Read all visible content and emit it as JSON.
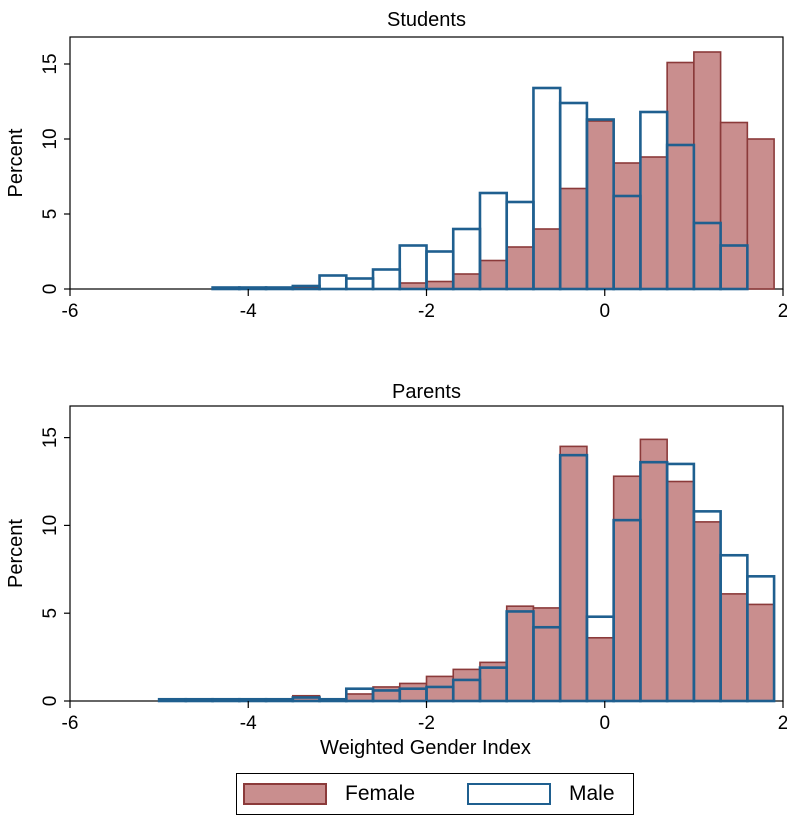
{
  "chart_data": [
    {
      "type": "histogram",
      "title": "Students",
      "xlabel": "",
      "ylabel": "Percent",
      "xlim": [
        -6,
        2
      ],
      "ylim": [
        0,
        16.8
      ],
      "xticks": [
        "-6",
        "-4",
        "-2",
        "0",
        "2"
      ],
      "yticks": [
        "0",
        "5",
        "10",
        "15"
      ],
      "bin_width": 0.3,
      "series": [
        {
          "name": "Female",
          "color": "#c98e8e",
          "edge": "#8b3a3a",
          "bins": [
            {
              "x0": -4.4,
              "value": 0.1
            },
            {
              "x0": -3.5,
              "value": 0.1
            },
            {
              "x0": -2.3,
              "value": 0.4
            },
            {
              "x0": -2.0,
              "value": 0.5
            },
            {
              "x0": -1.7,
              "value": 1.0
            },
            {
              "x0": -1.4,
              "value": 1.9
            },
            {
              "x0": -1.1,
              "value": 2.8
            },
            {
              "x0": -0.8,
              "value": 4.0
            },
            {
              "x0": -0.5,
              "value": 6.7
            },
            {
              "x0": -0.2,
              "value": 11.2
            },
            {
              "x0": 0.1,
              "value": 8.4
            },
            {
              "x0": 0.4,
              "value": 8.8
            },
            {
              "x0": 0.7,
              "value": 15.1
            },
            {
              "x0": 1.0,
              "value": 15.8
            },
            {
              "x0": 1.3,
              "value": 11.1
            },
            {
              "x0": 1.6,
              "value": 10.0
            }
          ]
        },
        {
          "name": "Male",
          "color": "#ffffff",
          "edge": "#1f5f8f",
          "bins": [
            {
              "x0": -4.4,
              "value": 0.1
            },
            {
              "x0": -4.1,
              "value": 0.1
            },
            {
              "x0": -3.8,
              "value": 0.1
            },
            {
              "x0": -3.5,
              "value": 0.2
            },
            {
              "x0": -3.2,
              "value": 0.9
            },
            {
              "x0": -2.9,
              "value": 0.7
            },
            {
              "x0": -2.6,
              "value": 1.3
            },
            {
              "x0": -2.3,
              "value": 2.9
            },
            {
              "x0": -2.0,
              "value": 2.5
            },
            {
              "x0": -1.7,
              "value": 4.0
            },
            {
              "x0": -1.4,
              "value": 6.4
            },
            {
              "x0": -1.1,
              "value": 5.8
            },
            {
              "x0": -0.8,
              "value": 13.4
            },
            {
              "x0": -0.5,
              "value": 12.4
            },
            {
              "x0": -0.2,
              "value": 11.3
            },
            {
              "x0": 0.1,
              "value": 6.2
            },
            {
              "x0": 0.4,
              "value": 11.8
            },
            {
              "x0": 0.7,
              "value": 9.6
            },
            {
              "x0": 1.0,
              "value": 4.4
            },
            {
              "x0": 1.3,
              "value": 2.9
            }
          ]
        }
      ]
    },
    {
      "type": "histogram",
      "title": "Parents",
      "xlabel": "Weighted Gender Index",
      "ylabel": "Percent",
      "xlim": [
        -6,
        2
      ],
      "ylim": [
        0,
        16.8
      ],
      "xticks": [
        "-6",
        "-4",
        "-2",
        "0",
        "2"
      ],
      "yticks": [
        "0",
        "5",
        "10",
        "15"
      ],
      "bin_width": 0.3,
      "series": [
        {
          "name": "Female",
          "color": "#c98e8e",
          "edge": "#8b3a3a",
          "bins": [
            {
              "x0": -5.0,
              "value": 0.1
            },
            {
              "x0": -4.7,
              "value": 0.1
            },
            {
              "x0": -4.4,
              "value": 0.1
            },
            {
              "x0": -4.1,
              "value": 0.1
            },
            {
              "x0": -3.8,
              "value": 0.1
            },
            {
              "x0": -3.5,
              "value": 0.3
            },
            {
              "x0": -3.2,
              "value": 0.1
            },
            {
              "x0": -2.9,
              "value": 0.4
            },
            {
              "x0": -2.6,
              "value": 0.8
            },
            {
              "x0": -2.3,
              "value": 1.0
            },
            {
              "x0": -2.0,
              "value": 1.4
            },
            {
              "x0": -1.7,
              "value": 1.8
            },
            {
              "x0": -1.4,
              "value": 2.2
            },
            {
              "x0": -1.1,
              "value": 5.4
            },
            {
              "x0": -0.8,
              "value": 5.3
            },
            {
              "x0": -0.5,
              "value": 14.5
            },
            {
              "x0": -0.2,
              "value": 3.6
            },
            {
              "x0": 0.1,
              "value": 12.8
            },
            {
              "x0": 0.4,
              "value": 14.9
            },
            {
              "x0": 0.7,
              "value": 12.5
            },
            {
              "x0": 1.0,
              "value": 10.2
            },
            {
              "x0": 1.3,
              "value": 6.1
            },
            {
              "x0": 1.6,
              "value": 5.5
            }
          ]
        },
        {
          "name": "Male",
          "color": "#ffffff",
          "edge": "#1f5f8f",
          "bins": [
            {
              "x0": -5.0,
              "value": 0.1
            },
            {
              "x0": -4.7,
              "value": 0.1
            },
            {
              "x0": -4.4,
              "value": 0.1
            },
            {
              "x0": -4.1,
              "value": 0.1
            },
            {
              "x0": -3.8,
              "value": 0.1
            },
            {
              "x0": -3.5,
              "value": 0.2
            },
            {
              "x0": -3.2,
              "value": 0.1
            },
            {
              "x0": -2.9,
              "value": 0.7
            },
            {
              "x0": -2.6,
              "value": 0.6
            },
            {
              "x0": -2.3,
              "value": 0.7
            },
            {
              "x0": -2.0,
              "value": 0.8
            },
            {
              "x0": -1.7,
              "value": 1.2
            },
            {
              "x0": -1.4,
              "value": 1.9
            },
            {
              "x0": -1.1,
              "value": 5.1
            },
            {
              "x0": -0.8,
              "value": 4.2
            },
            {
              "x0": -0.5,
              "value": 14.0
            },
            {
              "x0": -0.2,
              "value": 4.8
            },
            {
              "x0": 0.1,
              "value": 10.3
            },
            {
              "x0": 0.4,
              "value": 13.6
            },
            {
              "x0": 0.7,
              "value": 13.5
            },
            {
              "x0": 1.0,
              "value": 10.8
            },
            {
              "x0": 1.3,
              "value": 8.3
            },
            {
              "x0": 1.6,
              "value": 7.1
            }
          ]
        }
      ]
    }
  ],
  "legend": {
    "placement": "bottom",
    "items": [
      {
        "label": "Female",
        "color": "#c98e8e",
        "edge": "#8b3a3a"
      },
      {
        "label": "Male",
        "color": "#ffffff",
        "edge": "#1f5f8f"
      }
    ]
  }
}
